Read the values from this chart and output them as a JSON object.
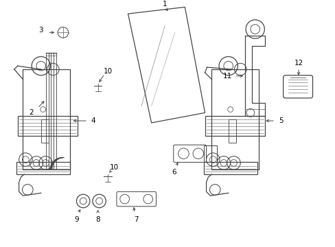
{
  "bg_color": "#ffffff",
  "line_color": "#444444",
  "lw": 0.9,
  "fig_w": 4.89,
  "fig_h": 3.6,
  "dpi": 100
}
